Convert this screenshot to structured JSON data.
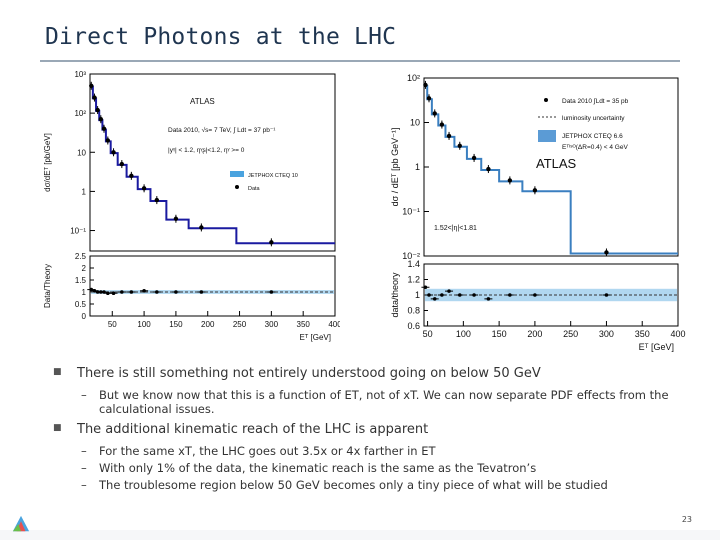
{
  "slide": {
    "title": "Direct Photons at the LHC",
    "page_number": "23"
  },
  "bullets": [
    {
      "text": "There is still something not entirely understood going on below 50 GeV",
      "subs": [
        "But we know now that this is a function of ET, not of xT. We can now separate PDF effects from the",
        "calculational issues."
      ]
    },
    {
      "text": "The additional kinematic reach of the LHC is apparent",
      "subs": [
        "For the same xT, the LHC goes out 3.5x or 4x farther in ET",
        "With only 1% of the data, the kinematic reach is the same as the Tevatron’s",
        "The troublesome region below 50 GeV becomes only a tiny piece of what will be studied"
      ]
    }
  ],
  "chart_data": [
    {
      "type": "scatter",
      "title": "ATLAS",
      "ylabel": "dσ/dEᵀ [pb/GeV]",
      "ratio_ylabel": "Data/Theory",
      "xlabel": "Eᵀ [GeV]",
      "xlim": [
        15,
        400
      ],
      "ylim": [
        0.03,
        1000
      ],
      "yscale": "log",
      "ratio_ylim": [
        0,
        2.5
      ],
      "x_ticks": [
        "50",
        "100",
        "150",
        "200",
        "250",
        "300",
        "350",
        "400"
      ],
      "y_ticks": [
        "10³",
        "10²",
        "10",
        "1",
        "10⁻¹"
      ],
      "ratio_y_ticks": [
        "0",
        "0.5",
        "1",
        "1.5",
        "2",
        "2.5"
      ],
      "annotations": [
        "Data 2010, √s= 7 TeV, ∫ Ldt = 37 pb⁻¹",
        "|yᵞ| < 1.2, ηᵞʂ|<1.2, ηᵞ >= 0"
      ],
      "legend": [
        "JETPHOX CTEQ 10",
        "Data"
      ],
      "legend_position": "middle-right",
      "series": [
        {
          "name": "Data",
          "x": [
            17,
            22,
            27,
            32,
            37,
            43,
            52,
            65,
            80,
            100,
            120,
            150,
            190,
            300
          ],
          "y": [
            500,
            250,
            120,
            70,
            40,
            20,
            10,
            5,
            2.5,
            1.2,
            0.6,
            0.2,
            0.12,
            0.05
          ],
          "ratio": [
            1.1,
            1.05,
            1.0,
            1.0,
            1.0,
            0.95,
            0.95,
            1.0,
            1.0,
            1.05,
            1.0,
            1.0,
            1.0,
            1.0
          ]
        }
      ]
    },
    {
      "type": "scatter",
      "title": "ATLAS",
      "ylabel": "dσ / dEᵀ [pb GeV⁻¹]",
      "ratio_ylabel": "data/theory",
      "xlabel": "Eᵀ [GeV]",
      "xlim": [
        45,
        400
      ],
      "ylim": [
        0.01,
        100
      ],
      "yscale": "log",
      "ratio_ylim": [
        0.6,
        1.4
      ],
      "x_ticks": [
        "50",
        "100",
        "150",
        "200",
        "250",
        "300",
        "350",
        "400"
      ],
      "y_ticks": [
        "10²",
        "10",
        "1",
        "10⁻¹",
        "10⁻²"
      ],
      "ratio_y_ticks": [
        "1.4",
        "1.2",
        "1",
        "0.8",
        "0.6"
      ],
      "annotations": [
        "1.52<|η|<1.81"
      ],
      "legend": [
        "Data 2010  ∫Ldt = 35 pb",
        "luminosity uncertainty",
        "JETPHOX CTEQ 6.6",
        "Eᵀᴵˢᴼ(ΔR=0.4) < 4 GeV"
      ],
      "legend_position": "top-right",
      "series": [
        {
          "name": "Data 2010",
          "x": [
            47,
            52,
            60,
            70,
            80,
            95,
            115,
            135,
            165,
            200,
            300
          ],
          "y": [
            70,
            35,
            16,
            9,
            5,
            3,
            1.6,
            0.9,
            0.5,
            0.3,
            0.012
          ],
          "ratio": [
            1.1,
            1.0,
            0.95,
            1.0,
            1.05,
            1.0,
            1.0,
            0.95,
            1.0,
            1.0,
            1.0
          ]
        }
      ]
    }
  ]
}
